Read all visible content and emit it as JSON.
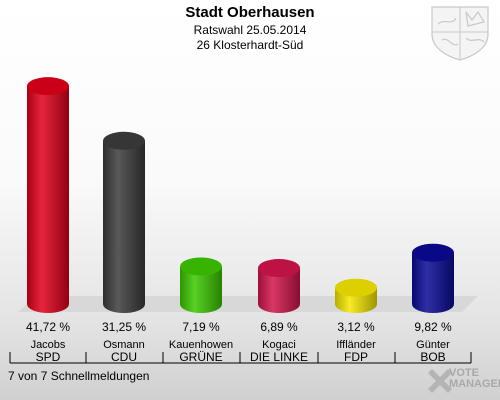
{
  "header": {
    "title": "Stadt Oberhausen",
    "subtitle": "Ratswahl 25.05.2014",
    "district": "26 Klosterhardt-Süd"
  },
  "footer": {
    "status": "7 von 7 Schnellmeldungen"
  },
  "logo": {
    "line1": "VOTE",
    "line2": "MANAGER",
    "color": "#a9a9a9"
  },
  "chart_data": {
    "type": "bar",
    "title": "Stadt Oberhausen",
    "ylim": [
      0,
      45
    ],
    "grid": false,
    "legend": "none",
    "categories": [
      "SPD",
      "CDU",
      "GRÜNE",
      "DIE LINKE",
      "FDP",
      "BOB"
    ],
    "candidates": [
      "Jacobs",
      "Osmann",
      "Kauenhowen",
      "Kogaci",
      "Iffländer",
      "Günter"
    ],
    "values": [
      41.72,
      31.25,
      7.19,
      6.89,
      3.12,
      9.82
    ],
    "value_labels": [
      "41,72 %",
      "31,25 %",
      "7,19 %",
      "6,89 %",
      "3,12 %",
      "9,82 %"
    ],
    "colors": [
      "#e0001a",
      "#3c3c3c",
      "#3cc800",
      "#d2144a",
      "#f5e600",
      "#0a0a96"
    ]
  }
}
